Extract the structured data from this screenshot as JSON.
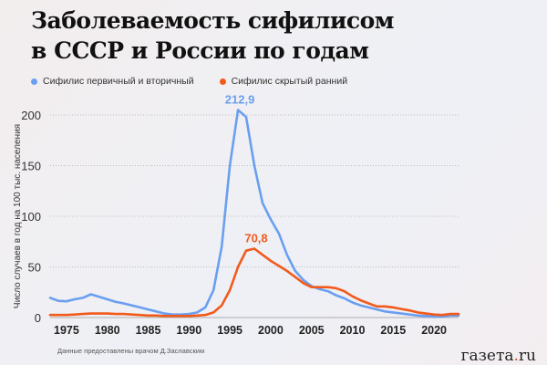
{
  "title_line1": "Заболеваемость сифилисом",
  "title_line2": "в СССР и России по годам",
  "source": "Данные предоставлены врачом Д.Заславским",
  "logo": {
    "main": "газета",
    "dot": ".",
    "tld": "ru"
  },
  "chart_data": {
    "type": "line",
    "title": "Заболеваемость сифилисом в СССР и России по годам",
    "ylabel": "Число случаев в год на 100 тыс. населения",
    "xlabel": "",
    "ylim": [
      0,
      200
    ],
    "xlim": [
      1973,
      2023
    ],
    "yticks": [
      "0",
      "50",
      "100",
      "150",
      "200"
    ],
    "xticks": [
      "1975",
      "1980",
      "1985",
      "1990",
      "1995",
      "2000",
      "2005",
      "2010",
      "2015",
      "2020"
    ],
    "grid": "horizontal dotted",
    "legend": "top-left",
    "x": [
      1973,
      1974,
      1975,
      1976,
      1977,
      1978,
      1979,
      1980,
      1981,
      1982,
      1983,
      1984,
      1985,
      1986,
      1987,
      1988,
      1989,
      1990,
      1991,
      1992,
      1993,
      1994,
      1995,
      1996,
      1997,
      1998,
      1999,
      2000,
      2001,
      2002,
      2003,
      2004,
      2005,
      2006,
      2007,
      2008,
      2009,
      2010,
      2011,
      2012,
      2013,
      2014,
      2015,
      2016,
      2017,
      2018,
      2019,
      2020,
      2021,
      2022,
      2023
    ],
    "series": [
      {
        "name": "Сифилис первичный и вторичный",
        "color": "#6a9ff0",
        "values": [
          19.5,
          16.5,
          16,
          18,
          19.5,
          23,
          20.5,
          18,
          15.5,
          14,
          12,
          10,
          8,
          6,
          4,
          3,
          3,
          3.5,
          5,
          10,
          27,
          70,
          150,
          205,
          198,
          150,
          113,
          97,
          83,
          62,
          46,
          37,
          31,
          28,
          26,
          22,
          19,
          15,
          12,
          10,
          8,
          6,
          5,
          4,
          3,
          2,
          1.5,
          1,
          1,
          2,
          2
        ],
        "peak_label": "212,9",
        "peak_year": 1996
      },
      {
        "name": "Сифилис скрытый ранний",
        "color": "#f25a1c",
        "values": [
          2.5,
          2.5,
          2.5,
          3,
          3.5,
          4,
          4,
          4,
          3.5,
          3.5,
          3,
          2.5,
          2,
          2,
          1.5,
          1.5,
          1.5,
          1.5,
          2,
          2.5,
          5,
          12,
          27,
          50,
          66,
          68,
          62,
          56,
          51,
          46,
          40,
          34,
          30,
          30,
          30,
          29,
          26,
          21,
          17,
          14,
          11,
          11,
          10,
          8.5,
          7,
          5,
          4,
          3,
          2.5,
          3.5,
          3.5
        ],
        "peak_label": "70,8",
        "peak_year": 1998
      }
    ]
  }
}
